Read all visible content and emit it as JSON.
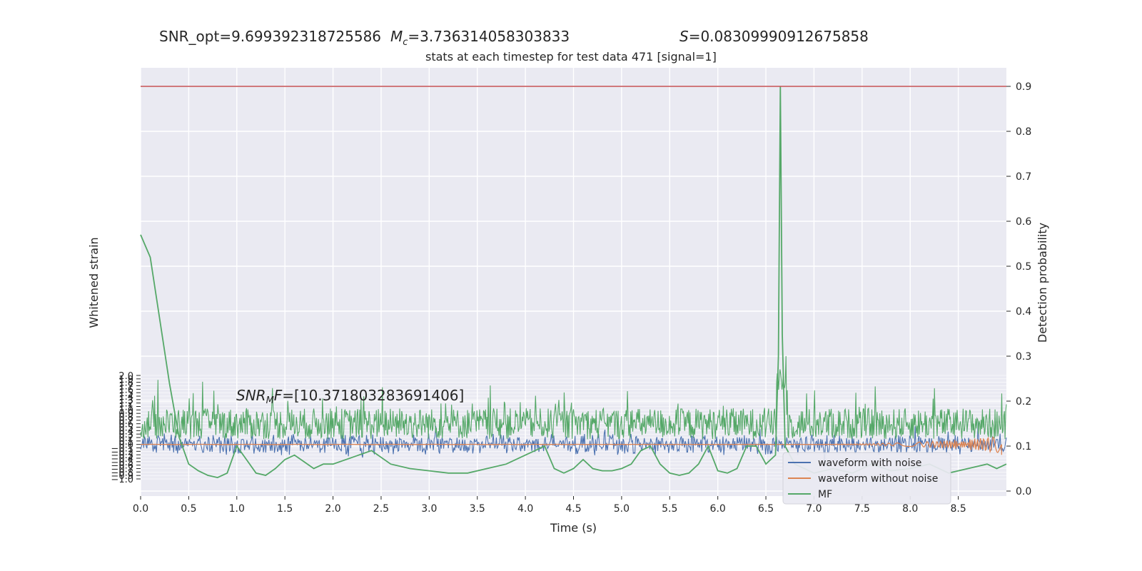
{
  "header": {
    "snr_opt": "SNR_opt=9.699392318725586",
    "mc_symbol": "M",
    "mc_sub": "c",
    "mc_value": "=3.736314058303833",
    "s_symbol": "S",
    "s_value": "=0.08309990912675858"
  },
  "chart_data": {
    "type": "line",
    "title": "stats at each timestep for test data 471 [signal=1]",
    "xlabel": "Time (s)",
    "ylabel_left": "Whitened strain",
    "ylabel_right": "Detection probability",
    "xlim": [
      0.0,
      9.0
    ],
    "ylim_right": [
      0.0,
      0.9
    ],
    "ylim_left": [
      -1.0,
      2.0
    ],
    "x_ticks": [
      "0.0",
      "0.5",
      "1.0",
      "1.5",
      "2.0",
      "2.5",
      "3.0",
      "3.5",
      "4.0",
      "4.5",
      "5.0",
      "5.5",
      "6.0",
      "6.5",
      "7.0",
      "7.5",
      "8.0",
      "8.5"
    ],
    "right_ticks": [
      "0.0",
      "0.1",
      "0.2",
      "0.3",
      "0.4",
      "0.5",
      "0.6",
      "0.7",
      "0.8",
      "0.9"
    ],
    "left_ticks": [
      "2.0",
      "1.9",
      "1.8",
      "1.7",
      "1.6",
      "1.5",
      "1.4",
      "1.3",
      "1.2",
      "1.1",
      "1.0",
      "0.9",
      "0.8",
      "0.7",
      "0.6",
      "0.5",
      "0.4",
      "0.3",
      "0.2",
      "0.1",
      "0.0",
      "−0.1",
      "−0.2",
      "−0.3",
      "−0.4",
      "−0.5",
      "−0.6",
      "−0.7",
      "−0.8",
      "−0.9",
      "−1.0"
    ],
    "threshold": 0.9,
    "threshold_color": "#c44e52",
    "grid": true,
    "legend_position": "bottom-right",
    "annotation": {
      "text_main": "SNR",
      "text_sub": "M",
      "text_f": "F",
      "text_value": "=[10.371803283691406]"
    },
    "series": [
      {
        "name": "waveform with noise",
        "color": "#4c72b0"
      },
      {
        "name": "waveform without noise",
        "color": "#dd8452"
      },
      {
        "name": "MF",
        "color": "#55a868"
      }
    ],
    "mf_probability": {
      "x": [
        0.0,
        0.1,
        0.2,
        0.3,
        0.4,
        0.5,
        0.6,
        0.7,
        0.8,
        0.9,
        1.0,
        1.1,
        1.2,
        1.3,
        1.4,
        1.5,
        1.6,
        1.7,
        1.8,
        1.9,
        2.0,
        2.2,
        2.4,
        2.6,
        2.8,
        3.0,
        3.2,
        3.4,
        3.6,
        3.8,
        4.0,
        4.1,
        4.2,
        4.3,
        4.4,
        4.5,
        4.6,
        4.7,
        4.8,
        4.9,
        5.0,
        5.1,
        5.2,
        5.3,
        5.4,
        5.5,
        5.6,
        5.7,
        5.8,
        5.9,
        6.0,
        6.1,
        6.2,
        6.3,
        6.4,
        6.5,
        6.6,
        6.63,
        6.65,
        6.67,
        6.7,
        6.8,
        6.9,
        7.0,
        7.2,
        7.4,
        7.6,
        7.8,
        8.0,
        8.2,
        8.4,
        8.6,
        8.8,
        8.9,
        9.0
      ],
      "y": [
        0.57,
        0.52,
        0.38,
        0.24,
        0.12,
        0.06,
        0.045,
        0.035,
        0.03,
        0.04,
        0.1,
        0.07,
        0.04,
        0.035,
        0.05,
        0.07,
        0.08,
        0.065,
        0.05,
        0.06,
        0.06,
        0.075,
        0.09,
        0.06,
        0.05,
        0.045,
        0.04,
        0.04,
        0.05,
        0.06,
        0.08,
        0.09,
        0.1,
        0.05,
        0.04,
        0.05,
        0.07,
        0.05,
        0.045,
        0.045,
        0.05,
        0.06,
        0.09,
        0.1,
        0.06,
        0.04,
        0.035,
        0.04,
        0.06,
        0.1,
        0.045,
        0.04,
        0.05,
        0.1,
        0.1,
        0.06,
        0.08,
        0.3,
        0.9,
        0.35,
        0.1,
        0.06,
        0.05,
        0.04,
        0.05,
        0.04,
        0.06,
        0.045,
        0.05,
        0.06,
        0.04,
        0.05,
        0.06,
        0.05,
        0.06
      ]
    }
  }
}
